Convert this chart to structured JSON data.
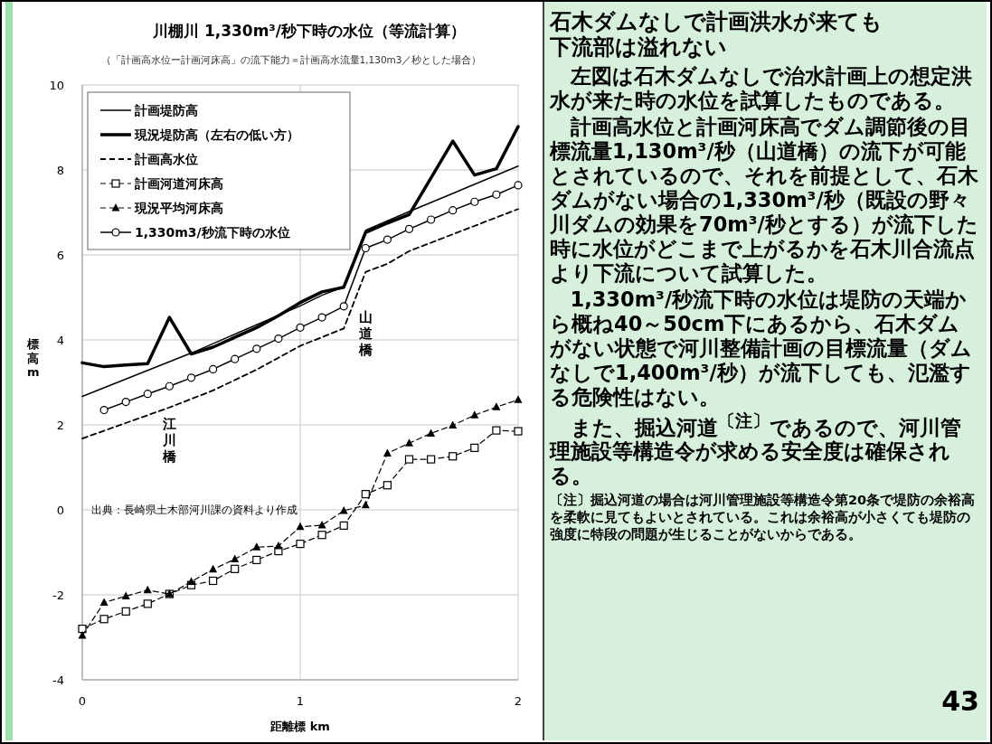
{
  "chart_data": [
    {
      "type": "line",
      "title": "川棚川  1,330m³/秒下時の水位（等流計算）",
      "subtitle": "（「計画高水位ー計画河床高」の流下能力＝計画高水流量1,130m3／秒とした場合）",
      "xlabel": "距離標  km",
      "ylabel": "標高  m",
      "x": [
        0,
        0.1,
        0.2,
        0.3,
        0.4,
        0.5,
        0.6,
        0.7,
        0.8,
        0.9,
        1.0,
        1.1,
        1.2,
        1.3,
        1.4,
        1.5,
        1.6,
        1.7,
        1.8,
        1.9,
        2.0
      ],
      "xlim": [
        0,
        2
      ],
      "xticks": [
        0,
        1,
        2
      ],
      "ylim": [
        -4,
        10
      ],
      "yticks": [
        -4,
        -2,
        0,
        2,
        4,
        6,
        8,
        10
      ],
      "grid": true,
      "legend": "top left",
      "series": [
        {
          "name": "計画堤防高",
          "color": "#000000",
          "line_style": "solid",
          "marker": "none",
          "x": [
            0,
            0.5,
            1.0,
            1.1,
            1.2,
            1.3,
            1.5,
            2.0
          ],
          "values": [
            2.67,
            3.69,
            4.8,
            5.05,
            5.25,
            6.58,
            7.02,
            8.09
          ]
        },
        {
          "name": "現況堤防高（左右の低い方）",
          "color": "#000000",
          "line_style": "solid",
          "marker": "none",
          "values": [
            3.46,
            3.37,
            3.41,
            3.44,
            4.53,
            3.67,
            3.83,
            4.06,
            4.29,
            4.57,
            4.88,
            5.13,
            5.24,
            6.53,
            6.75,
            6.95,
            7.81,
            8.68,
            7.88,
            8.03,
            9.02
          ]
        },
        {
          "name": "計画高水位",
          "color": "#000000",
          "line_style": "dashed",
          "marker": "none",
          "x": [
            0,
            0.4,
            0.6,
            0.8,
            1.0,
            1.2,
            1.3,
            1.4,
            1.5,
            2.0
          ],
          "values": [
            1.68,
            2.41,
            2.81,
            3.3,
            3.86,
            4.27,
            5.6,
            5.79,
            6.09,
            7.08
          ]
        },
        {
          "name": "計画河道河床高",
          "color": "#000000",
          "line_style": "dashed",
          "marker": "square",
          "values": [
            -2.8,
            -2.57,
            -2.39,
            -2.21,
            -1.98,
            -1.77,
            -1.67,
            -1.39,
            -1.18,
            -0.97,
            -0.8,
            -0.59,
            -0.37,
            0.37,
            0.58,
            1.19,
            1.19,
            1.26,
            1.46,
            1.87,
            1.85
          ]
        },
        {
          "name": "現況平均河床高",
          "color": "#000000",
          "line_style": "dashed",
          "marker": "triangle",
          "values": [
            -2.96,
            -2.18,
            -2.03,
            -1.89,
            -1.98,
            -1.69,
            -1.4,
            -1.16,
            -0.88,
            -0.85,
            -0.4,
            -0.36,
            -0.02,
            0.11,
            1.33,
            1.57,
            1.8,
            1.99,
            2.23,
            2.42,
            2.59
          ]
        },
        {
          "name": "1,330m3/秒流下時の水位",
          "color": "#000000",
          "line_style": "solid",
          "marker": "circle",
          "values": [
            null,
            2.35,
            2.54,
            2.73,
            2.91,
            3.11,
            3.31,
            3.55,
            3.79,
            4.03,
            4.29,
            4.53,
            4.79,
            6.16,
            6.36,
            6.61,
            6.83,
            7.05,
            7.25,
            7.42,
            7.64
          ]
        }
      ],
      "annotations": [
        "江川橋",
        "山道橋",
        "出典：長崎県土木部河川課の資料より作成"
      ]
    },
    {
      "type": "other",
      "title": "石木ダムなしで計画洪水が来ても下流部は溢れない",
      "annotations": [
        "左図は石木ダムなしで治水計画上の想定洪水が来た時の水位を試算したものである。",
        "計画高水位と計画河床高でダム調節後の目標流量1,130m³/秒（山道橋）の流下が可能とされているので、それを前提として、石木ダムがない場合の1,330m³/秒（既設の野々川ダムの効果を70m³/秒とする）が流下した時に水位がどこまで上がるかを石木川合流点より下流について試算した。",
        "1,330m³/秒流下時の水位は堤防の天端から概ね40～50cm下にあるから、石木ダムがない状態で河川整備計画の目標流量（ダムなしで1,400m³/秒）が流下しても、氾濫する危険性はない。",
        "また、掘込河道$^{〔注〕}$であるので、河川管理施設等構造令が求める安全度は確保される。",
        "〔注〕掘込河道の場合は河川管理施設等構造令第20条で堤防の余裕高を柔軟に見てもよいとされている。これは余裕高が小さくても堤防の強度に特段の問題が生じることがないからである。",
        "43"
      ]
    }
  ]
}
